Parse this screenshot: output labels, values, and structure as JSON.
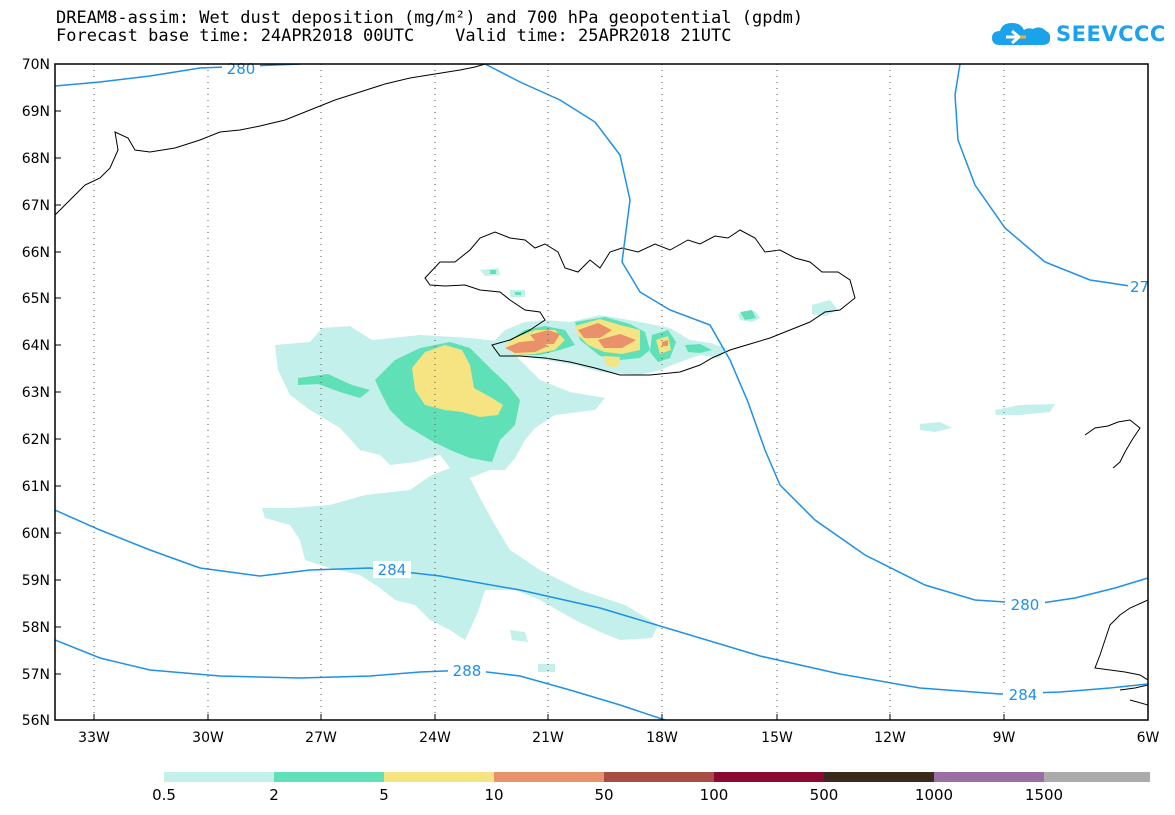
{
  "title": {
    "line1": "DREAM8-assim: Wet dust deposition (mg/m²) and 700 hPa geopotential (gpdm)",
    "line2": "Forecast base time: 24APR2018 00UTC    Valid time: 25APR2018 21UTC"
  },
  "logo": {
    "text": "SEEVCCC",
    "icon": "cloud-icon",
    "color": "#1aa3ea"
  },
  "map": {
    "lat_labels": [
      "70N",
      "69N",
      "68N",
      "67N",
      "66N",
      "65N",
      "64N",
      "63N",
      "62N",
      "61N",
      "60N",
      "59N",
      "58N",
      "57N",
      "56N"
    ],
    "lon_labels": [
      "33W",
      "30W",
      "27W",
      "24W",
      "21W",
      "18W",
      "15W",
      "12W",
      "9W",
      "6W"
    ],
    "lat_range": [
      56,
      70
    ],
    "lon_range": [
      -34.4,
      -6
    ],
    "grid": "dotted",
    "contour_color": "#1e90e8",
    "contour_labels": [
      "280",
      "27",
      "284",
      "280",
      "288",
      "284"
    ]
  },
  "legend": {
    "ticks": [
      "0.5",
      "2",
      "5",
      "10",
      "50",
      "100",
      "500",
      "1000",
      "1500"
    ],
    "colors": [
      "#c3f0ea",
      "#5fe0b7",
      "#f6e483",
      "#e9916b",
      "#a84d43",
      "#8b0a33",
      "#3a2a1b",
      "#9b6ea3",
      "#ababab"
    ]
  }
}
